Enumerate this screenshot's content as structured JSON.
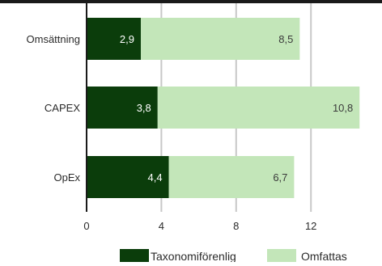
{
  "chart_data": {
    "type": "bar",
    "orientation": "horizontal",
    "stacked": true,
    "categories": [
      "Omsättning",
      "CAPEX",
      "OpEx"
    ],
    "series": [
      {
        "name": "Taxonomiförenlig",
        "values": [
          2.9,
          3.8,
          4.4
        ],
        "labels": [
          "2,9",
          "3,8",
          "4,4"
        ],
        "color": "#0b3d0b"
      },
      {
        "name": "Omfattas",
        "values": [
          8.5,
          10.8,
          6.7
        ],
        "labels": [
          "8,5",
          "10,8",
          "6,7"
        ],
        "color": "#c3e6b9"
      }
    ],
    "xlim": [
      0,
      15
    ],
    "xticks": [
      0,
      4,
      8,
      12
    ],
    "xtick_labels": [
      "0",
      "4",
      "8",
      "12"
    ],
    "grid": true,
    "legend": "bottom",
    "top_bar_color": "#1a1a1a"
  }
}
